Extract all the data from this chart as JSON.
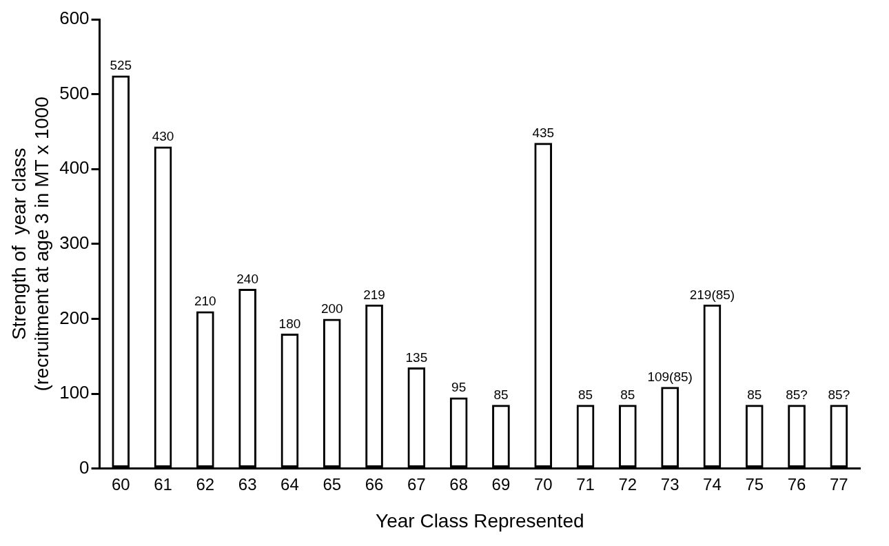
{
  "chart_data": {
    "type": "bar",
    "xlabel": "Year Class Represented",
    "ylabel": "Strength of  year class\n(recruitment at age 3 in MT x 1000",
    "categories": [
      "60",
      "61",
      "62",
      "63",
      "64",
      "65",
      "66",
      "67",
      "68",
      "69",
      "70",
      "71",
      "72",
      "73",
      "74",
      "75",
      "76",
      "77"
    ],
    "series": [
      {
        "color": "#000000",
        "values": [
          525,
          430,
          210,
          240,
          180,
          200,
          219,
          135,
          95,
          85,
          435,
          85,
          85,
          109,
          219,
          85,
          85,
          85
        ],
        "value_labels": [
          "525",
          "430",
          "210",
          "240",
          "180",
          "200",
          "219",
          "135",
          "95",
          "85",
          "435",
          "85",
          "85",
          "109(85)",
          "219(85)",
          "85",
          "85?",
          "85?"
        ]
      }
    ],
    "ylim": [
      0,
      600
    ],
    "yticks": [
      0,
      100,
      200,
      300,
      400,
      500,
      600
    ],
    "grid": false,
    "legend": false
  }
}
